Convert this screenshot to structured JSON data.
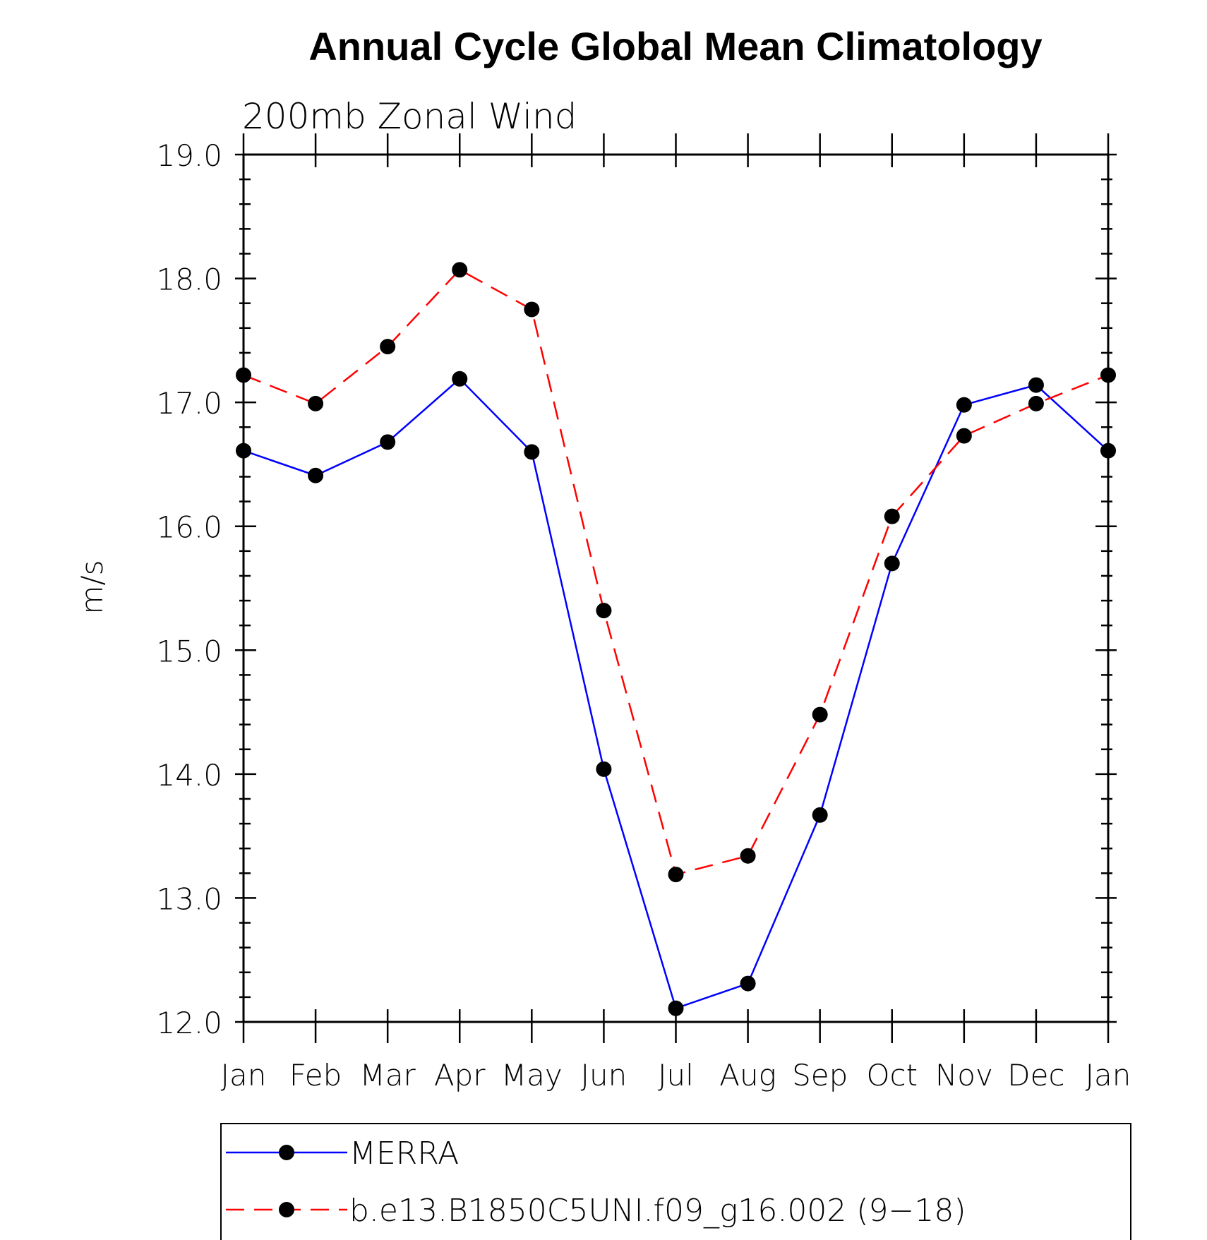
{
  "chart_data": {
    "type": "line",
    "title": "Annual Cycle Global Mean Climatology",
    "subtitle": "200mb Zonal Wind",
    "ylabel": "m/s",
    "xlabel": "",
    "ylim": [
      12.0,
      19.0
    ],
    "yticks": [
      "12.0",
      "13.0",
      "14.0",
      "15.0",
      "16.0",
      "17.0",
      "18.0",
      "19.0"
    ],
    "categories": [
      "Jan",
      "Feb",
      "Mar",
      "Apr",
      "May",
      "Jun",
      "Jul",
      "Aug",
      "Sep",
      "Oct",
      "Nov",
      "Dec",
      "Jan"
    ],
    "series": [
      {
        "name": "MERRA",
        "color": "#0000ff",
        "dash": "solid",
        "values": [
          16.61,
          16.41,
          16.68,
          17.19,
          16.6,
          14.04,
          12.11,
          12.31,
          13.67,
          15.7,
          16.98,
          17.14,
          16.61
        ]
      },
      {
        "name": "b.e13.B1850C5UNI.f09_g16.002 (9−18)",
        "color": "#ff0000",
        "dash": "dashed",
        "values": [
          17.22,
          16.99,
          17.45,
          18.07,
          17.75,
          15.32,
          13.19,
          13.34,
          14.48,
          16.08,
          16.73,
          16.99,
          17.22
        ]
      }
    ],
    "grid": false,
    "legend_position": "bottom"
  }
}
